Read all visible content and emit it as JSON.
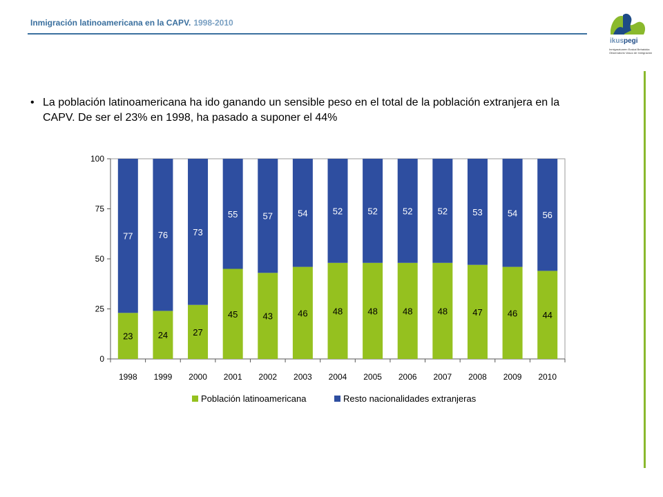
{
  "header": {
    "title": "Inmigración latinoamericana  en la CAPV.",
    "years": "1998-2010"
  },
  "logo": {
    "name_light": "ikus",
    "name_bold": "pegi",
    "tagline_line1": "Inmigrazioaren Euskal Behatokia",
    "tagline_line2": "Observatorio Vasco de Inmigración",
    "colors": [
      "#8ab92d",
      "#1e4b86"
    ]
  },
  "bullet": {
    "marker": "•",
    "text": "La población latinoamericana ha ido ganando un sensible peso en el total de la población extranjera en la CAPV. De ser el 23% en 1998, ha pasado a suponer el 44%"
  },
  "colors": {
    "header_blue": "#3a6f9e",
    "side_green": "#8ab92d",
    "latam_green": "#95c11f",
    "rest_blue": "#2e4ea0"
  },
  "chart_data": {
    "type": "bar",
    "stacked": true,
    "categories": [
      "1998",
      "1999",
      "2000",
      "2001",
      "2002",
      "2003",
      "2004",
      "2005",
      "2006",
      "2007",
      "2008",
      "2009",
      "2010"
    ],
    "series": [
      {
        "name": "Población latinoamericana",
        "color": "#95c11f",
        "values": [
          23,
          24,
          27,
          45,
          43,
          46,
          48,
          48,
          48,
          48,
          47,
          46,
          44
        ]
      },
      {
        "name": "Resto nacionalidades extranjeras",
        "color": "#2e4ea0",
        "values": [
          77,
          76,
          73,
          55,
          57,
          54,
          52,
          52,
          52,
          52,
          53,
          54,
          56
        ]
      }
    ],
    "ylim": [
      0,
      100
    ],
    "yticks": [
      "0",
      "25",
      "50",
      "75",
      "100"
    ],
    "legend": "bottom",
    "grid": false
  }
}
